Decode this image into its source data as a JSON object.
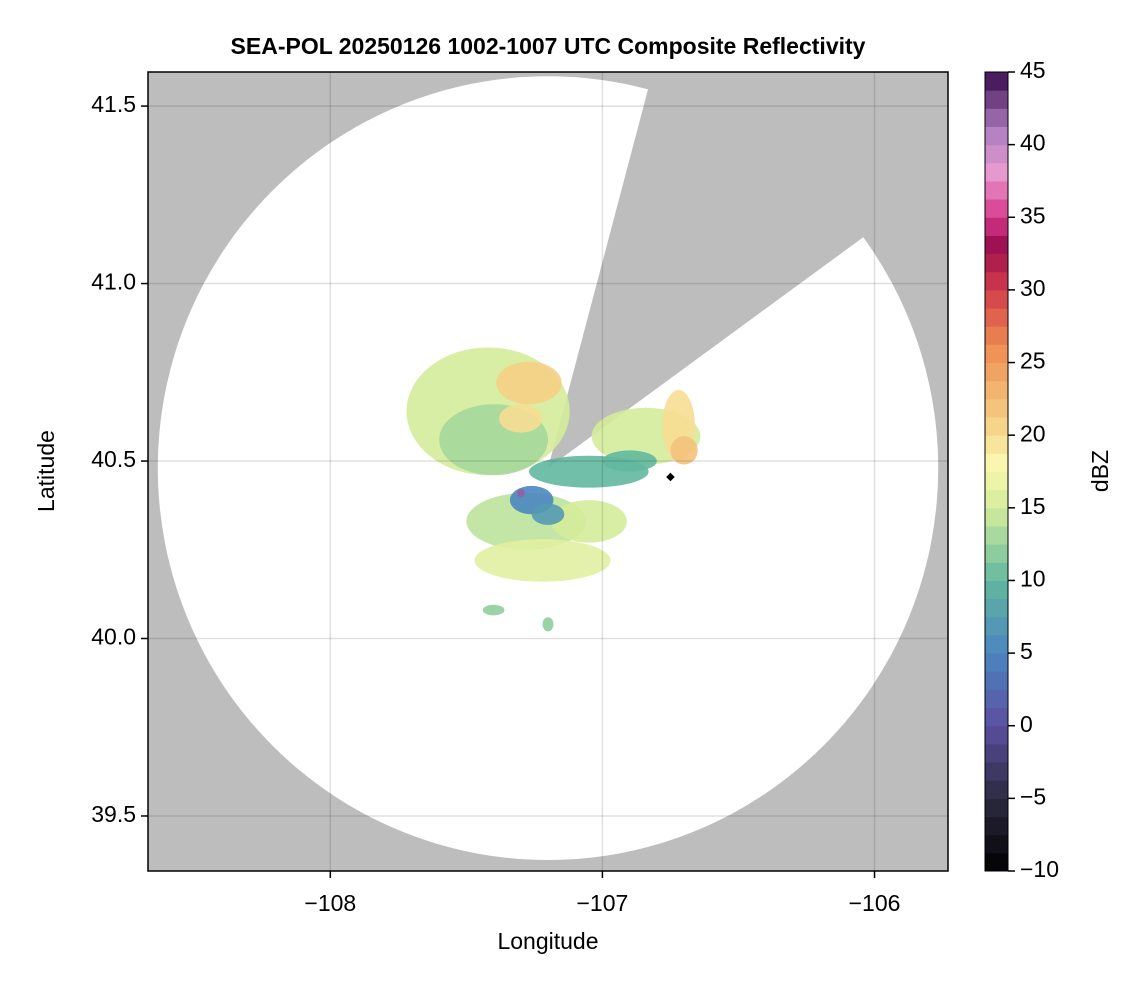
{
  "chart_data": {
    "type": "radar",
    "title": "SEA-POL 20250126 1002-1007 UTC Composite Reflectivity",
    "x_label": "Longitude",
    "y_label": "Latitude",
    "xlim": [
      -108.67,
      -105.73
    ],
    "ylim": [
      39.345,
      41.596
    ],
    "xticks": [
      {
        "value": -108,
        "label": "−108"
      },
      {
        "value": -107,
        "label": "−107"
      },
      {
        "value": -106,
        "label": "−106"
      }
    ],
    "yticks": [
      {
        "value": 39.5,
        "label": "39.5"
      },
      {
        "value": 40.0,
        "label": "40.0"
      },
      {
        "value": 40.5,
        "label": "40.5"
      },
      {
        "value": 41.0,
        "label": "41.0"
      },
      {
        "value": 41.5,
        "label": "41.5"
      }
    ],
    "grid": true,
    "background_color": "#bdbdbd",
    "coverage": {
      "center": [
        -107.2,
        40.48
      ],
      "radius_lon": 1.434,
      "radius_lat": 1.104,
      "color": "#ffffff",
      "blocked_edges": [
        [
          -106.84,
          41.525
        ],
        [
          -106.06,
          41.12
        ]
      ]
    },
    "colorbar_label": "dBZ",
    "colorbar_lim": [
      -10,
      45
    ],
    "colorbar_ticks": [
      {
        "value": -10,
        "label": "−10"
      },
      {
        "value": -5,
        "label": "−5"
      },
      0,
      5,
      10,
      15,
      20,
      25,
      30,
      35,
      40,
      45
    ],
    "colormap": [
      {
        "value": -10,
        "color": "#000000"
      },
      {
        "value": -5,
        "color": "#2c2a40"
      },
      {
        "value": 0,
        "color": "#5b4fa0"
      },
      {
        "value": 5,
        "color": "#4a86c0"
      },
      {
        "value": 10,
        "color": "#62b89e"
      },
      {
        "value": 15,
        "color": "#d4ec9a"
      },
      {
        "value": 18,
        "color": "#fbf8b0"
      },
      {
        "value": 21,
        "color": "#f5cf85"
      },
      {
        "value": 26,
        "color": "#ee8f52"
      },
      {
        "value": 30,
        "color": "#d33d4a"
      },
      {
        "value": 33,
        "color": "#9a0f4f"
      },
      {
        "value": 35,
        "color": "#d6388a"
      },
      {
        "value": 38,
        "color": "#e89ad0"
      },
      {
        "value": 41,
        "color": "#b07fc1"
      },
      {
        "value": 45,
        "color": "#3a0a4e"
      }
    ],
    "echoes": [
      {
        "lon": -107.42,
        "lat": 40.64,
        "rx": 0.3,
        "ry": 0.18,
        "dbz": 15
      },
      {
        "lon": -107.4,
        "lat": 40.56,
        "rx": 0.2,
        "ry": 0.1,
        "dbz": 13
      },
      {
        "lon": -107.27,
        "lat": 40.72,
        "rx": 0.12,
        "ry": 0.06,
        "dbz": 21
      },
      {
        "lon": -107.3,
        "lat": 40.62,
        "rx": 0.08,
        "ry": 0.04,
        "dbz": 20
      },
      {
        "lon": -106.84,
        "lat": 40.57,
        "rx": 0.2,
        "ry": 0.08,
        "dbz": 15
      },
      {
        "lon": -106.72,
        "lat": 40.6,
        "rx": 0.06,
        "ry": 0.1,
        "dbz": 20
      },
      {
        "lon": -106.7,
        "lat": 40.53,
        "rx": 0.05,
        "ry": 0.04,
        "dbz": 22
      },
      {
        "lon": -107.28,
        "lat": 40.33,
        "rx": 0.22,
        "ry": 0.08,
        "dbz": 14
      },
      {
        "lon": -107.05,
        "lat": 40.33,
        "rx": 0.14,
        "ry": 0.06,
        "dbz": 15
      },
      {
        "lon": -107.22,
        "lat": 40.22,
        "rx": 0.25,
        "ry": 0.06,
        "dbz": 16
      },
      {
        "lon": -107.05,
        "lat": 40.47,
        "rx": 0.22,
        "ry": 0.045,
        "dbz": 10
      },
      {
        "lon": -106.9,
        "lat": 40.5,
        "rx": 0.1,
        "ry": 0.03,
        "dbz": 10
      },
      {
        "lon": -107.26,
        "lat": 40.39,
        "rx": 0.08,
        "ry": 0.04,
        "dbz": 5
      },
      {
        "lon": -107.2,
        "lat": 40.35,
        "rx": 0.06,
        "ry": 0.03,
        "dbz": 7
      },
      {
        "lon": -107.3,
        "lat": 40.41,
        "rx": 0.015,
        "ry": 0.012,
        "dbz": 42
      },
      {
        "lon": -107.4,
        "lat": 40.08,
        "rx": 0.04,
        "ry": 0.015,
        "dbz": 12
      },
      {
        "lon": -107.2,
        "lat": 40.04,
        "rx": 0.02,
        "ry": 0.02,
        "dbz": 12
      }
    ],
    "marker": {
      "lon": -106.75,
      "lat": 40.455,
      "color": "#000000"
    }
  }
}
